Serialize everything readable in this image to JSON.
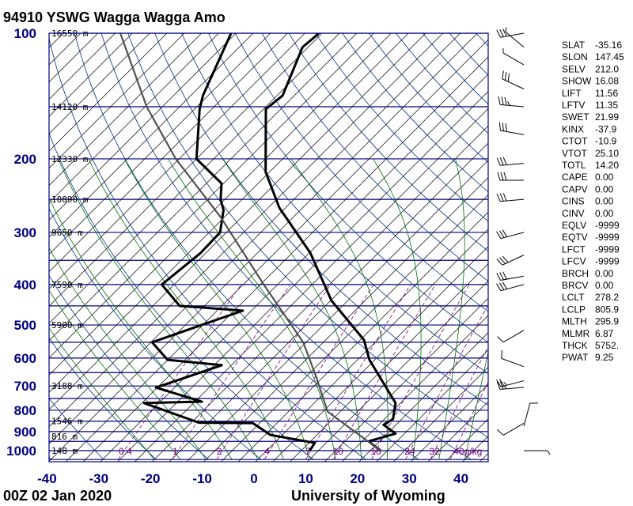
{
  "header": {
    "title": "94910 YSWG Wagga Wagga Amo"
  },
  "footer": {
    "date": "00Z 02 Jan 2020",
    "credit": "University of Wyoming"
  },
  "colors": {
    "isobar": "#000080",
    "isotherm": "#000000",
    "dry_adiabat": "#00308f",
    "moist_adiabat": "#007000",
    "mixing_ratio": "#800080",
    "profile": "#000000",
    "parcel": "#505050"
  },
  "chart_data": {
    "type": "skew-t",
    "title": "94910 YSWG Wagga Wagga Amo",
    "xlabel": "Temperature (°C)",
    "ylabel": "Pressure (hPa)",
    "xlim": [
      -40,
      45
    ],
    "ylim": [
      1050,
      100
    ],
    "pressure_ticks": [
      {
        "p": 100,
        "label": "100"
      },
      {
        "p": 200,
        "label": "200"
      },
      {
        "p": 300,
        "label": "300"
      },
      {
        "p": 400,
        "label": "400"
      },
      {
        "p": 500,
        "label": "500"
      },
      {
        "p": 600,
        "label": "600"
      },
      {
        "p": 700,
        "label": "700"
      },
      {
        "p": 800,
        "label": "800"
      },
      {
        "p": 900,
        "label": "900"
      },
      {
        "p": 1000,
        "label": "1000"
      }
    ],
    "temperature_ticks": [
      {
        "t": -40,
        "label": "-40"
      },
      {
        "t": -30,
        "label": "-30"
      },
      {
        "t": -20,
        "label": "-20"
      },
      {
        "t": -10,
        "label": "-10"
      },
      {
        "t": 0,
        "label": "0"
      },
      {
        "t": 10,
        "label": "10"
      },
      {
        "t": 20,
        "label": "20"
      },
      {
        "t": 30,
        "label": "30"
      },
      {
        "t": 40,
        "label": "40"
      }
    ],
    "height_labels": [
      {
        "p": 100,
        "label": "16550 m"
      },
      {
        "p": 150,
        "label": "14120 m"
      },
      {
        "p": 200,
        "label": "12330 m"
      },
      {
        "p": 250,
        "label": "10890 m"
      },
      {
        "p": 300,
        "label": "9650 m"
      },
      {
        "p": 400,
        "label": "7590 m"
      },
      {
        "p": 500,
        "label": "5900 m"
      },
      {
        "p": 700,
        "label": "3188 m"
      },
      {
        "p": 850,
        "label": "1546 m"
      },
      {
        "p": 925,
        "label": "816 m"
      },
      {
        "p": 1000,
        "label": "148 m"
      }
    ],
    "mixing_ratio_lines": [
      {
        "w": 0.4,
        "label": "0.4"
      },
      {
        "w": 1,
        "label": "1"
      },
      {
        "w": 2,
        "label": "2"
      },
      {
        "w": 4,
        "label": "4"
      },
      {
        "w": 7,
        "label": "7"
      },
      {
        "w": 10,
        "label": "10"
      },
      {
        "w": 16,
        "label": "16"
      },
      {
        "w": 24,
        "label": "24"
      },
      {
        "w": 32,
        "label": "32"
      },
      {
        "w": 40,
        "label": "40g/kg"
      }
    ],
    "series": [
      {
        "name": "temperature",
        "points": [
          [
            100,
            -70.6
          ],
          [
            108,
            -71.1
          ],
          [
            141,
            -65.6
          ],
          [
            152,
            -66.2
          ],
          [
            215,
            -54.1
          ],
          [
            262,
            -44.5
          ],
          [
            336,
            -29.8
          ],
          [
            437,
            -16.5
          ],
          [
            543,
            -2.6
          ],
          [
            606,
            2.3
          ],
          [
            769,
            15.7
          ],
          [
            840,
            18.3
          ],
          [
            867,
            17.6
          ],
          [
            910,
            21.6
          ],
          [
            950,
            17.9
          ],
          [
            1000,
            22.0
          ]
        ]
      },
      {
        "name": "dewpoint",
        "points": [
          [
            100,
            -87.6
          ],
          [
            141,
            -81
          ],
          [
            152,
            -79
          ],
          [
            200,
            -70
          ],
          [
            229,
            -60.4
          ],
          [
            250,
            -57.5
          ],
          [
            265,
            -54.9
          ],
          [
            300,
            -51.2
          ],
          [
            336,
            -51
          ],
          [
            400,
            -52.4
          ],
          [
            450,
            -44.8
          ],
          [
            462,
            -31.7
          ],
          [
            550,
            -43.1
          ],
          [
            606,
            -36.7
          ],
          [
            624,
            -25.2
          ],
          [
            706,
            -33.6
          ],
          [
            763,
            -22
          ],
          [
            769,
            -32.9
          ],
          [
            857,
            -18.5
          ],
          [
            859,
            -8
          ],
          [
            917,
            -2.3
          ],
          [
            958,
            7.8
          ],
          [
            1000,
            8.3
          ]
        ]
      },
      {
        "name": "parcel",
        "points": [
          [
            1000,
            22
          ],
          [
            806,
            4.2
          ],
          [
            667,
            -4.6
          ],
          [
            550,
            -13.9
          ],
          [
            400,
            -32.7
          ],
          [
            276,
            -54
          ],
          [
            200,
            -74
          ],
          [
            150,
            -89.7
          ],
          [
            100,
            -109
          ]
        ]
      }
    ],
    "wind_barbs": [
      {
        "p": 100,
        "dir": 260,
        "kt": 30
      },
      {
        "p": 108,
        "dir": 310,
        "kt": 5
      },
      {
        "p": 119,
        "dir": 300,
        "kt": 5
      },
      {
        "p": 136,
        "dir": 295,
        "kt": 30
      },
      {
        "p": 150,
        "dir": 275,
        "kt": 35
      },
      {
        "p": 175,
        "dir": 280,
        "kt": 30
      },
      {
        "p": 205,
        "dir": 265,
        "kt": 30
      },
      {
        "p": 225,
        "dir": 270,
        "kt": 30
      },
      {
        "p": 250,
        "dir": 265,
        "kt": 30
      },
      {
        "p": 300,
        "dir": 255,
        "kt": 30
      },
      {
        "p": 340,
        "dir": 245,
        "kt": 30
      },
      {
        "p": 382,
        "dir": 260,
        "kt": 30
      },
      {
        "p": 400,
        "dir": 255,
        "kt": 30
      },
      {
        "p": 515,
        "dir": 240,
        "kt": 10
      },
      {
        "p": 629,
        "dir": 290,
        "kt": 10
      },
      {
        "p": 680,
        "dir": 255,
        "kt": 25
      },
      {
        "p": 705,
        "dir": 265,
        "kt": 25
      },
      {
        "p": 860,
        "dir": 240,
        "kt": 10
      },
      {
        "p": 874,
        "dir": 15,
        "kt": 10
      },
      {
        "p": 1000,
        "dir": 90,
        "kt": 5
      }
    ],
    "indices": [
      {
        "name": "SLAT",
        "value": "-35.16"
      },
      {
        "name": "SLON",
        "value": "147.45"
      },
      {
        "name": "SELV",
        "value": "212.0"
      },
      {
        "name": "SHOW",
        "value": "16.08"
      },
      {
        "name": "LIFT",
        "value": "11.56"
      },
      {
        "name": "LFTV",
        "value": "11.35"
      },
      {
        "name": "SWET",
        "value": "21.99"
      },
      {
        "name": "KINX",
        "value": "-37.9"
      },
      {
        "name": "CTOT",
        "value": "-10.9"
      },
      {
        "name": "VTOT",
        "value": "25.10"
      },
      {
        "name": "TOTL",
        "value": "14.20"
      },
      {
        "name": "CAPE",
        "value": "0.00"
      },
      {
        "name": "CAPV",
        "value": "0.00"
      },
      {
        "name": "CINS",
        "value": "0.00"
      },
      {
        "name": "CINV",
        "value": "0.00"
      },
      {
        "name": "EQLV",
        "value": "-9999"
      },
      {
        "name": "EQTV",
        "value": "-9999"
      },
      {
        "name": "LFCT",
        "value": "-9999"
      },
      {
        "name": "LFCV",
        "value": "-9999"
      },
      {
        "name": "BRCH",
        "value": "0.00"
      },
      {
        "name": "BRCV",
        "value": "0.00"
      },
      {
        "name": "LCLT",
        "value": "278.2"
      },
      {
        "name": "LCLP",
        "value": "805.9"
      },
      {
        "name": "MLTH",
        "value": "295.9"
      },
      {
        "name": "MLMR",
        "value": "6.87"
      },
      {
        "name": "THCK",
        "value": "5752."
      },
      {
        "name": "PWAT",
        "value": "9.25"
      }
    ]
  }
}
